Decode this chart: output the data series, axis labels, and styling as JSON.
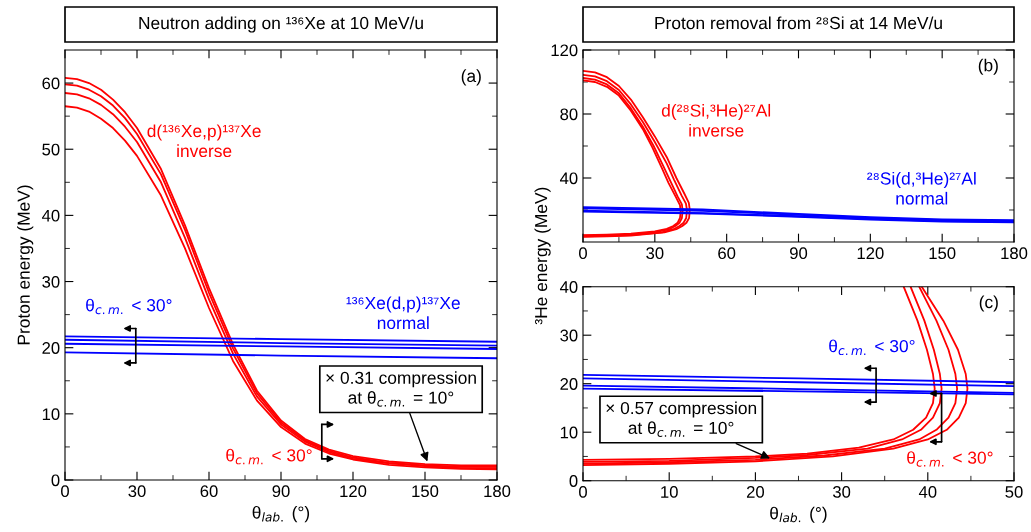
{
  "chart_data": [
    {
      "type": "line",
      "title": "Neutron adding on ¹³⁶Xe at 10 MeV/u",
      "xlabel": "θ$_{lab.}$ (°)",
      "ylabel": "Proton energy (MeV)",
      "xlim": [
        0,
        180
      ],
      "ylim": [
        0,
        65
      ],
      "xticks": [
        0,
        {
          "value": 15,
          "label": null
        },
        30,
        {
          "value": 45,
          "label": null
        },
        60,
        {
          "value": 75,
          "label": null
        },
        90,
        {
          "value": 105,
          "label": null
        },
        120,
        {
          "value": 135,
          "label": null
        },
        150,
        {
          "value": 165,
          "label": null
        },
        180
      ],
      "yticks": [
        0,
        {
          "value": 5,
          "label": null
        },
        10,
        {
          "value": 15,
          "label": null
        },
        20,
        {
          "value": 25,
          "label": null
        },
        30,
        {
          "value": 35,
          "label": null
        },
        40,
        {
          "value": 45,
          "label": null
        },
        50,
        {
          "value": 55,
          "label": null
        },
        60
      ],
      "series": [
        {
          "name": "d(¹³⁶Xe,p)¹³⁷Xe\ninverse",
          "color": "#ff0000",
          "x": [
            0,
            5,
            10,
            15,
            20,
            25,
            30,
            40,
            50,
            60,
            70,
            80,
            90,
            100,
            110,
            120,
            135,
            150,
            165,
            180
          ],
          "values": [
            60.8,
            60.6,
            60.0,
            59.0,
            57.5,
            55.6,
            53.2,
            47,
            38.5,
            29,
            20.5,
            13.5,
            9,
            6.2,
            4.6,
            3.6,
            2.8,
            2.4,
            2.2,
            2.2
          ]
        },
        {
          "color": "#ff0000",
          "x": [
            0,
            5,
            10,
            15,
            20,
            25,
            30,
            40,
            50,
            60,
            70,
            80,
            90,
            100,
            110,
            120,
            135,
            150,
            165,
            180
          ],
          "values": [
            59.8,
            59.6,
            59.0,
            58.0,
            56.6,
            54.7,
            52.3,
            46.2,
            37.8,
            28.3,
            19.9,
            13.1,
            8.7,
            6.0,
            4.4,
            3.4,
            2.6,
            2.2,
            2.0,
            2.0
          ]
        },
        {
          "color": "#ff0000",
          "x": [
            0,
            5,
            10,
            15,
            20,
            25,
            30,
            40,
            50,
            60,
            70,
            80,
            90,
            100,
            110,
            120,
            135,
            150,
            165,
            180
          ],
          "values": [
            58.5,
            58.3,
            57.7,
            56.7,
            55.3,
            53.4,
            51.1,
            45,
            36.6,
            27.3,
            19.1,
            12.6,
            8.4,
            5.8,
            4.2,
            3.2,
            2.5,
            2.1,
            1.8,
            1.8
          ]
        },
        {
          "color": "#ff0000",
          "x": [
            0,
            5,
            10,
            15,
            20,
            25,
            30,
            40,
            50,
            60,
            70,
            80,
            90,
            100,
            110,
            120,
            135,
            150,
            165,
            180
          ],
          "values": [
            56.5,
            56.3,
            55.7,
            54.6,
            53.2,
            51.3,
            49,
            43,
            35,
            26,
            18,
            12,
            8,
            5.5,
            4,
            3.1,
            2.3,
            1.9,
            1.7,
            1.6
          ]
        },
        {
          "name": "¹³⁶Xe(d,p)¹³⁷Xe\nnormal",
          "color": "#0000ff",
          "x": [
            0,
            90,
            180
          ],
          "values": [
            21.7,
            21.3,
            20.9
          ]
        },
        {
          "color": "#0000ff",
          "x": [
            0,
            90,
            180
          ],
          "values": [
            21.2,
            20.7,
            20.3
          ]
        },
        {
          "color": "#0000ff",
          "x": [
            0,
            90,
            180
          ],
          "values": [
            20.6,
            20.2,
            19.8
          ]
        },
        {
          "color": "#0000ff",
          "x": [
            0,
            90,
            180
          ],
          "values": [
            19.3,
            18.8,
            18.4
          ]
        }
      ],
      "annotations": [
        "(a)",
        {
          "text": "θ$_{c.m.}$ < 30°",
          "x": 29.5,
          "y": 20.3
        },
        {
          "text": "θ$_{c.m.}$ < 30°",
          "x": 107,
          "y": 5.8
        },
        {
          "text": "× 0.31 compression\nat θ$_{c.m.}$ = 10°",
          "x": 151,
          "y": 2.8
        }
      ]
    },
    {
      "type": "line",
      "title": "Proton removal from ²⁸Si at 14 MeV/u",
      "xlim": [
        0,
        180
      ],
      "ylim": [
        0,
        120
      ],
      "xticks": [
        0,
        {
          "value": 15,
          "label": null
        },
        30,
        {
          "value": 45,
          "label": null
        },
        60,
        {
          "value": 75,
          "label": null
        },
        90,
        {
          "value": 105,
          "label": null
        },
        120,
        {
          "value": 135,
          "label": null
        },
        150,
        {
          "value": 165,
          "label": null
        },
        180
      ],
      "yticks": [
        {
          "value": 20,
          "label": null
        },
        40,
        {
          "value": 60,
          "label": null
        },
        80,
        {
          "value": 100,
          "label": null
        },
        120
      ],
      "series": [
        {
          "name": "d(²⁸Si,³He)²⁷Al\ninverse",
          "color": "#ff0000",
          "x": [
            0,
            5,
            10,
            15,
            20,
            25,
            29,
            33,
            35.7,
            38.8,
            40.5,
            40.8,
            40.5,
            39.5,
            37.7,
            35,
            30,
            20,
            10,
            0
          ],
          "values": [
            101,
            100,
            97,
            91.5,
            82,
            70.5,
            59,
            46,
            37,
            28,
            23,
            19,
            15,
            12,
            10,
            8.2,
            6.6,
            5.2,
            4.6,
            4.3
          ]
        },
        {
          "color": "#ff0000",
          "x": [
            0,
            5,
            10,
            15,
            20,
            25,
            29.5,
            33.7,
            36.5,
            39.5,
            41.3,
            41.6,
            41.3,
            40.3,
            38.6,
            36,
            31,
            20,
            10,
            0
          ],
          "values": [
            102.5,
            101.5,
            98.5,
            93,
            83.5,
            72,
            60,
            47,
            38,
            28.5,
            23.5,
            19.5,
            15,
            12,
            10,
            8,
            6.3,
            4.8,
            4.2,
            3.9
          ]
        },
        {
          "color": "#ff0000",
          "x": [
            0,
            5,
            10,
            15,
            20,
            25,
            30,
            35,
            38,
            41.2,
            43,
            43.4,
            43.1,
            42,
            40.3,
            37.8,
            33,
            20,
            10,
            0
          ],
          "values": [
            104.5,
            103.5,
            100.5,
            95,
            86,
            75,
            62.5,
            49,
            39,
            29,
            24,
            20,
            15,
            12,
            10,
            8,
            6,
            4.3,
            3.8,
            3.5
          ]
        },
        {
          "color": "#ff0000",
          "x": [
            0,
            5,
            10,
            15,
            20,
            25,
            30,
            35,
            39,
            42.4,
            44.2,
            44.6,
            44.3,
            43.2,
            41.5,
            39,
            34,
            20,
            10,
            0
          ],
          "values": [
            107,
            106,
            103,
            97.5,
            89,
            78,
            66,
            53,
            40,
            30,
            24.5,
            20,
            15,
            12,
            10,
            8,
            6,
            4.0,
            3.5,
            3.2
          ]
        },
        {
          "name": "²⁸Si(d,³He)²⁷Al\nnormal",
          "color": "#0000ff",
          "x": [
            0,
            50,
            90,
            120,
            150,
            180
          ],
          "values": [
            21.8,
            20.3,
            17.6,
            15.6,
            14.2,
            13.7
          ]
        },
        {
          "color": "#0000ff",
          "x": [
            0,
            50,
            90,
            120,
            150,
            180
          ],
          "values": [
            21.1,
            19.5,
            17.0,
            15.1,
            13.7,
            13.2
          ]
        },
        {
          "color": "#0000ff",
          "x": [
            0,
            50,
            90,
            120,
            150,
            180
          ],
          "values": [
            19.6,
            18.1,
            16.1,
            14.4,
            13.1,
            12.6
          ]
        },
        {
          "color": "#0000ff",
          "x": [
            0,
            50,
            90,
            120,
            150,
            180
          ],
          "values": [
            19.0,
            17.8,
            15.7,
            14.0,
            12.8,
            12.3
          ]
        }
      ],
      "annotations": [
        "(b)"
      ]
    },
    {
      "type": "line",
      "xlabel": "θ$_{lab.}$ (°)",
      "ylabel": "³He energy (MeV)",
      "xlim": [
        0,
        50
      ],
      "ylim": [
        0,
        40
      ],
      "xticks": [
        0,
        {
          "value": 5,
          "label": null
        },
        10,
        {
          "value": 15,
          "label": null
        },
        20,
        {
          "value": 25,
          "label": null
        },
        30,
        {
          "value": 35,
          "label": null
        },
        40,
        {
          "value": 45,
          "label": null
        },
        50
      ],
      "yticks": [
        0,
        {
          "value": 5,
          "label": null
        },
        10,
        {
          "value": 15,
          "label": null
        },
        20,
        {
          "value": 25,
          "label": null
        },
        30,
        {
          "value": 35,
          "label": null
        },
        40
      ],
      "series": [
        {
          "color": "#ff0000",
          "x": [
            37.2,
            38.8,
            39.9,
            40.6,
            40.8,
            40.6,
            39.8,
            38.3,
            36,
            32,
            26,
            20,
            10,
            0
          ],
          "values": [
            40,
            33,
            27,
            22,
            19,
            16,
            13,
            10.5,
            8.5,
            6.8,
            5.6,
            5.0,
            4.5,
            4.3
          ]
        },
        {
          "color": "#ff0000",
          "x": [
            38.0,
            39.6,
            40.7,
            41.4,
            41.6,
            41.4,
            40.6,
            39.2,
            37,
            33,
            26,
            20,
            10,
            0
          ],
          "values": [
            40,
            33,
            27,
            22,
            19,
            16,
            13,
            10.5,
            8.5,
            6.6,
            5.3,
            4.7,
            4.1,
            3.9
          ]
        },
        {
          "color": "#ff0000",
          "x": [
            39.0,
            41,
            42.4,
            43.2,
            43.4,
            43.2,
            42.4,
            41,
            39,
            35,
            28,
            20,
            10,
            0
          ],
          "values": [
            40,
            33,
            27,
            22,
            19,
            16,
            13,
            10.5,
            8.5,
            6.6,
            5.2,
            4.3,
            3.8,
            3.5
          ]
        },
        {
          "color": "#ff0000",
          "x": [
            39.3,
            41.8,
            43.5,
            44.4,
            44.6,
            44.4,
            43.6,
            42.2,
            40,
            36,
            29,
            20,
            10,
            0
          ],
          "values": [
            40,
            33,
            27,
            22,
            19,
            16,
            13,
            10.5,
            8.5,
            6.6,
            5.0,
            4.0,
            3.5,
            3.2
          ]
        },
        {
          "color": "#0000ff",
          "x": [
            0,
            25,
            50
          ],
          "values": [
            21.8,
            21.1,
            20.3
          ]
        },
        {
          "color": "#0000ff",
          "x": [
            0,
            25,
            50
          ],
          "values": [
            21.1,
            20.3,
            19.5
          ]
        },
        {
          "color": "#0000ff",
          "x": [
            0,
            25,
            50
          ],
          "values": [
            19.6,
            18.9,
            18.1
          ]
        },
        {
          "color": "#0000ff",
          "x": [
            0,
            25,
            50
          ],
          "values": [
            19.0,
            18.4,
            17.8
          ]
        }
      ],
      "annotations": [
        "(c)",
        {
          "text": "θ$_{c.m.}$ < 30°",
          "x": 34.0,
          "y": 19.7
        },
        {
          "text": "θ$_{c.m.}$ < 30°",
          "x": 41.6,
          "y": 13.0
        },
        {
          "text": "× 0.57 compression\nat θ$_{c.m.}$ = 10°",
          "x": 21.7,
          "y": 4.6
        }
      ]
    }
  ]
}
